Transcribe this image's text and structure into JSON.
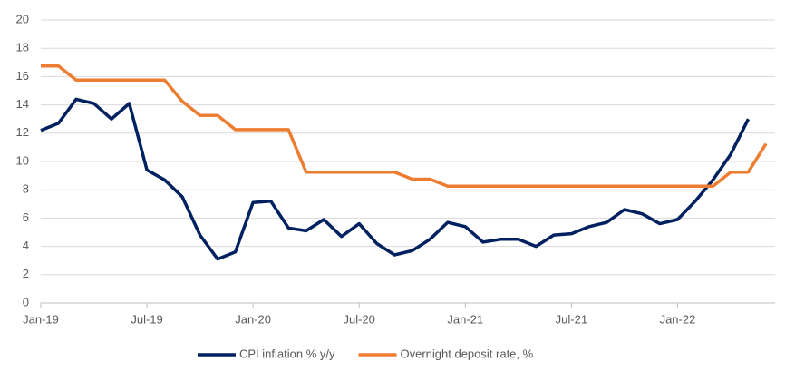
{
  "chart_data": {
    "type": "line",
    "categories": [
      "Jan-19",
      null,
      null,
      null,
      null,
      null,
      "Jul-19",
      null,
      null,
      null,
      null,
      null,
      "Jan-20",
      null,
      null,
      null,
      null,
      null,
      "Jul-20",
      null,
      null,
      null,
      null,
      null,
      "Jan-21",
      null,
      null,
      null,
      null,
      null,
      "Jul-21",
      null,
      null,
      null,
      null,
      null,
      "Jan-22",
      null,
      null,
      null,
      null,
      null
    ],
    "series": [
      {
        "name": "CPI inflation % y/y",
        "color": "#002060",
        "values": [
          12.2,
          12.7,
          14.4,
          14.1,
          13.0,
          14.1,
          9.4,
          8.7,
          7.5,
          4.8,
          3.1,
          3.6,
          7.1,
          7.2,
          5.3,
          5.1,
          5.9,
          4.7,
          5.6,
          4.2,
          3.4,
          3.7,
          4.5,
          5.7,
          5.4,
          4.3,
          4.5,
          4.5,
          4.0,
          4.8,
          4.9,
          5.4,
          5.7,
          6.6,
          6.3,
          5.6,
          5.9,
          7.2,
          8.7,
          10.5,
          13.0,
          null
        ]
      },
      {
        "name": "Overnight deposit rate, %",
        "color": "#ED7D31",
        "values": [
          16.75,
          16.75,
          15.75,
          15.75,
          15.75,
          15.75,
          15.75,
          15.75,
          14.25,
          13.25,
          13.25,
          12.25,
          12.25,
          12.25,
          12.25,
          9.25,
          9.25,
          9.25,
          9.25,
          9.25,
          9.25,
          8.75,
          8.75,
          8.25,
          8.25,
          8.25,
          8.25,
          8.25,
          8.25,
          8.25,
          8.25,
          8.25,
          8.25,
          8.25,
          8.25,
          8.25,
          8.25,
          8.25,
          8.25,
          9.25,
          9.25,
          11.25
        ]
      }
    ],
    "ylim": [
      0,
      20
    ],
    "yticks": [
      0,
      2,
      4,
      6,
      8,
      10,
      12,
      14,
      16,
      18,
      20
    ],
    "grid": true,
    "legend": "bottom"
  }
}
